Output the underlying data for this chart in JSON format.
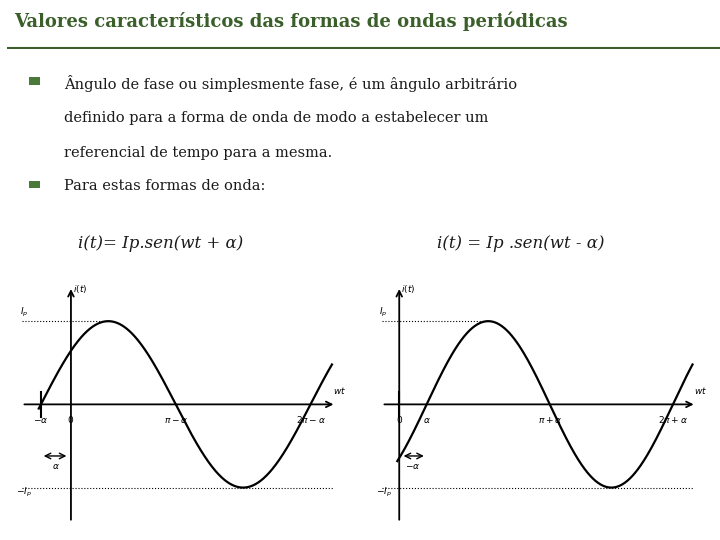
{
  "title": "Valores característicos das formas de ondas periódicas",
  "title_color": "#3a5f2a",
  "title_underline_color": "#3a5f2a",
  "bg_color": "#ffffff",
  "bullet_color": "#4a7a3a",
  "bullet1_line1": "Ângulo de fase ou simplesmente fase, é um ângulo arbitrário",
  "bullet1_line2": "definido para a forma de onda de modo a estabelecer um",
  "bullet1_line3": "referencial de tempo para a mesma.",
  "bullet2_text": "Para estas formas de onda:",
  "formula_left": "i(t)= Ip.sen(wt + α)",
  "formula_right": "i(t) = Ip .sen(wt - α)",
  "text_color": "#1a1a1a",
  "body_font_size": 10.5,
  "alpha": 0.7,
  "graph_line_color": "#000000"
}
